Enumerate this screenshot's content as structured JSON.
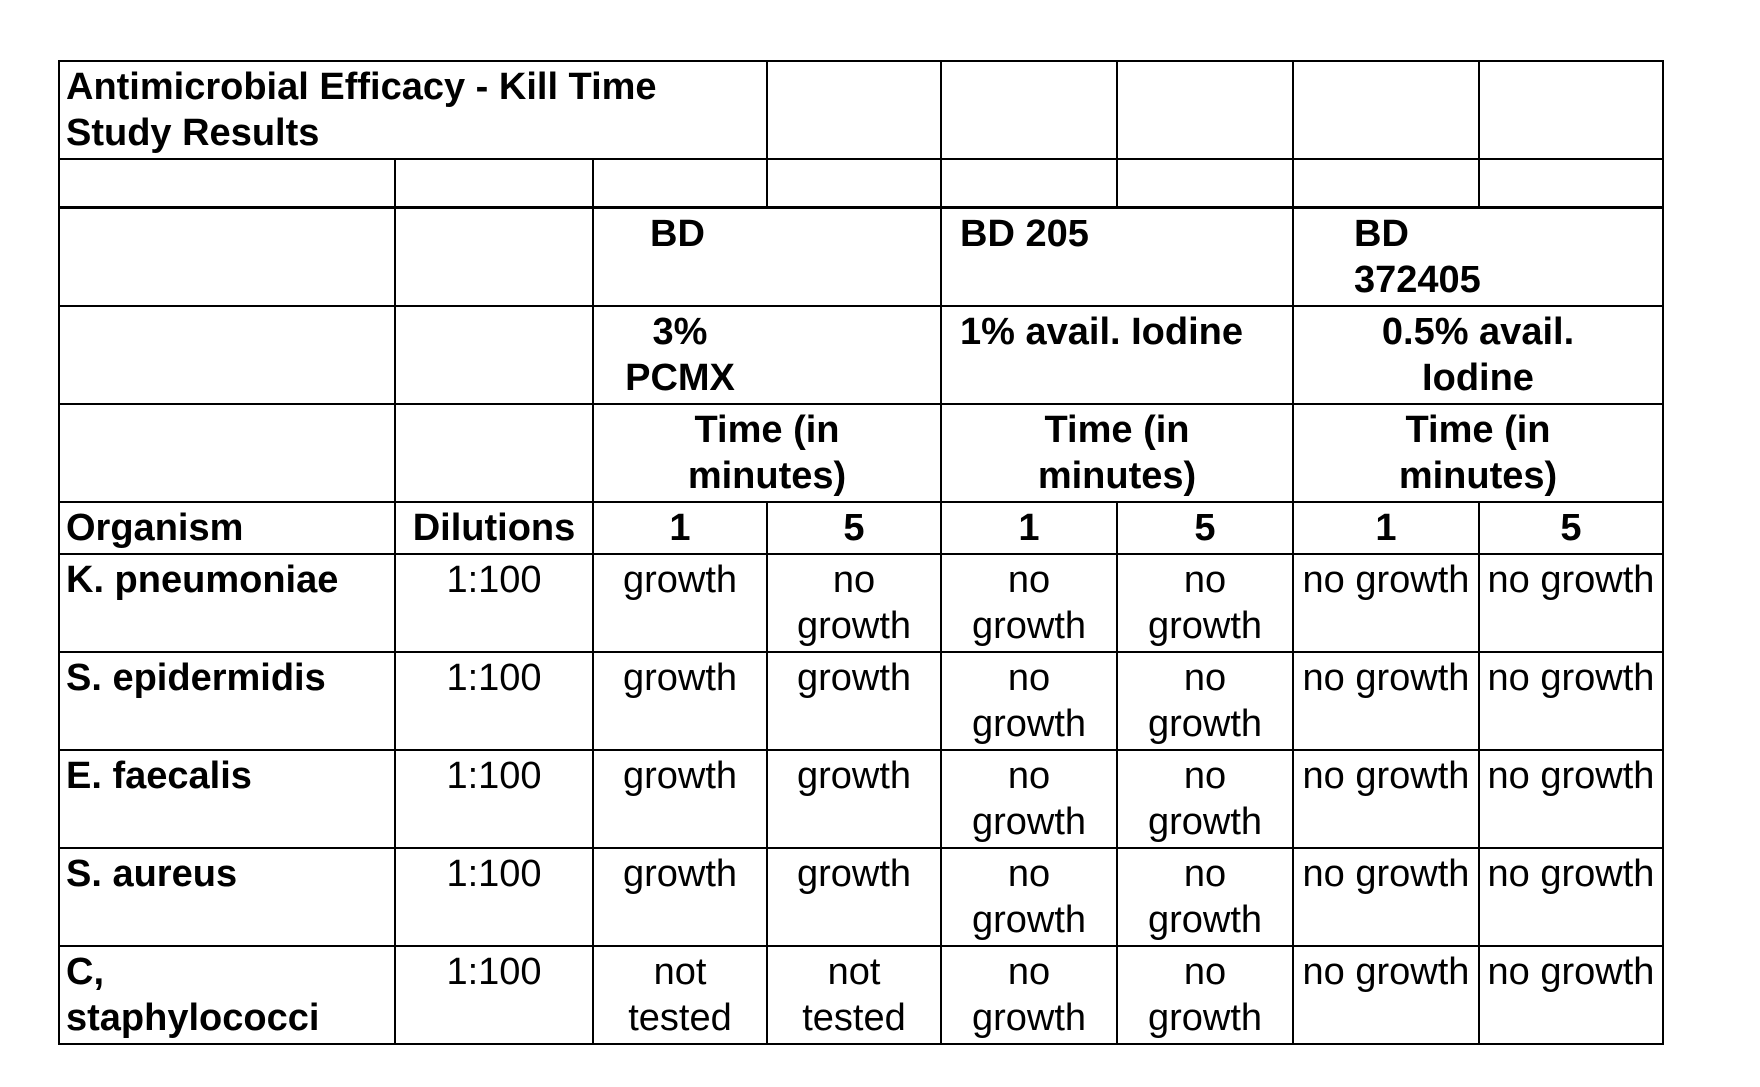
{
  "title": "Antimicrobial Efficacy - Kill Time Study Results",
  "products": [
    {
      "name": "BD",
      "active": "3% PCMX",
      "time_label": "Time (in minutes)"
    },
    {
      "name": "BD 205",
      "active": "1% avail. Iodine",
      "time_label": "Time (in minutes)"
    },
    {
      "name": "BD 372405",
      "active": "0.5% avail. Iodine",
      "time_label": "Time (in minutes)"
    }
  ],
  "headers": {
    "organism": "Organism",
    "dilutions": "Dilutions",
    "times": [
      "1",
      "5",
      "1",
      "5",
      "1",
      "5"
    ]
  },
  "rows": [
    {
      "organism": "K. pneumoniae",
      "dilution": "1:100",
      "results": [
        "growth",
        "no growth",
        "no growth",
        "no growth",
        "no growth",
        "no growth"
      ]
    },
    {
      "organism": "S. epidermidis",
      "dilution": "1:100",
      "results": [
        "growth",
        "growth",
        "no growth",
        "no growth",
        "no growth",
        "no growth"
      ]
    },
    {
      "organism": "E. faecalis",
      "dilution": "1:100",
      "results": [
        "growth",
        "growth",
        "no growth",
        "no growth",
        "no growth",
        "no growth"
      ]
    },
    {
      "organism": "S. aureus",
      "dilution": "1:100",
      "results": [
        "growth",
        "growth",
        "no growth",
        "no growth",
        "no growth",
        "no growth"
      ]
    },
    {
      "organism": "C, staphylococci",
      "dilution": "1:100",
      "results": [
        "not tested",
        "not tested",
        "no growth",
        "no growth",
        "no growth",
        "no growth"
      ]
    }
  ]
}
